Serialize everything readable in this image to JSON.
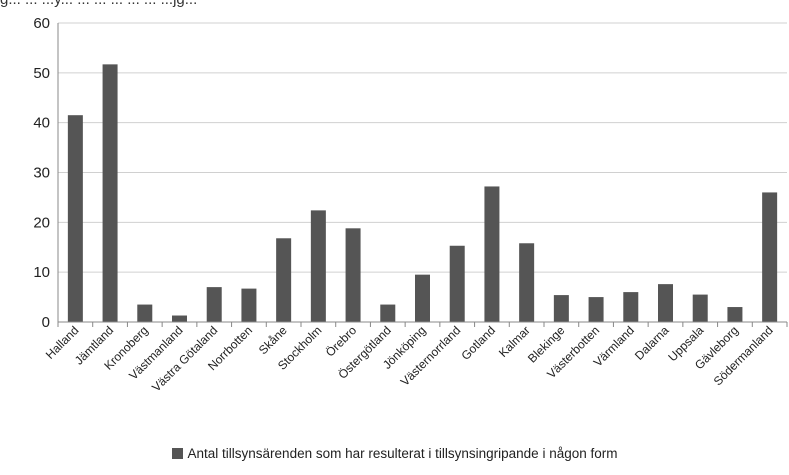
{
  "top_clipped_text": "g... ... ...y... ... ... ... ... ... ...jg...",
  "chart_data": {
    "type": "bar",
    "categories": [
      "Halland",
      "Jämtland",
      "Kronoberg",
      "Västmanland",
      "Västra Götaland",
      "Norrbotten",
      "Skåne",
      "Stockholm",
      "Örebro",
      "Östergötland",
      "Jönköping",
      "Västernorrland",
      "Gotland",
      "Kalmar",
      "Blekinge",
      "Västerbotten",
      "Värmland",
      "Dalarna",
      "Uppsala",
      "Gävleborg",
      "Södermanland"
    ],
    "series": [
      {
        "name": "Antal tillsynsärenden som har resulterat i tillsynsingripande i någon form",
        "values": [
          41.5,
          51.7,
          3.5,
          1.3,
          7.0,
          6.7,
          16.8,
          22.4,
          18.8,
          3.5,
          9.5,
          15.3,
          27.2,
          15.8,
          5.4,
          5.0,
          6.0,
          7.6,
          5.5,
          3.0,
          26.0
        ]
      }
    ],
    "ylim": [
      0,
      60
    ],
    "yticks": [
      0,
      10,
      20,
      30,
      40,
      50,
      60
    ],
    "grid": true,
    "legend_position": "bottom",
    "bar_color": "#555555",
    "grid_color": "#d0d0d0"
  }
}
